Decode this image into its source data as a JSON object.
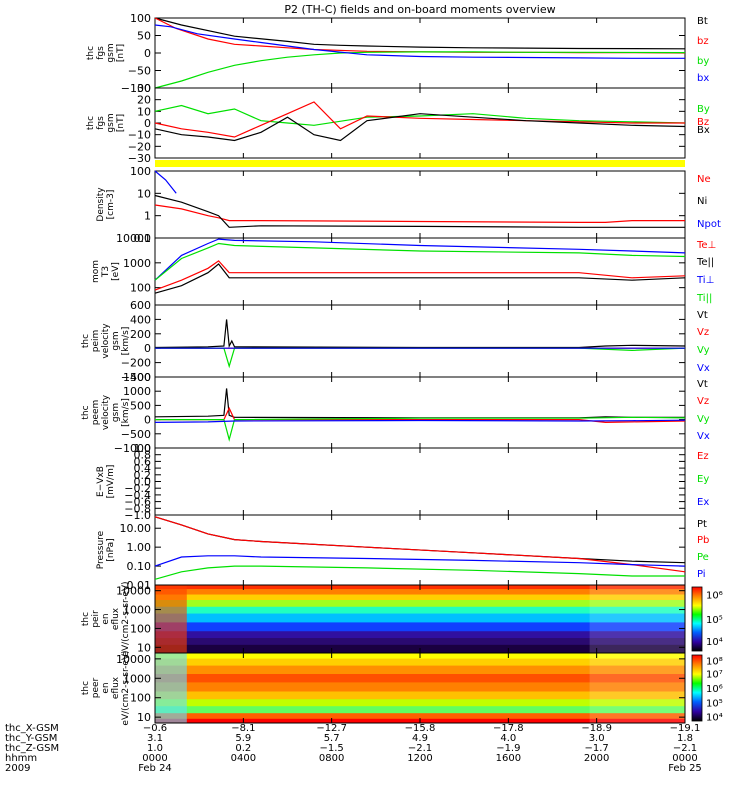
{
  "figure": {
    "title": "P2 (TH-C) fields and on-board moments overview",
    "colors": {
      "black": "#000000",
      "red": "#ff0000",
      "green": "#00e000",
      "blue": "#0000ff",
      "yellow": "#ffff00"
    }
  },
  "chart_data": [
    {
      "type": "line",
      "name": "fgs-gsm",
      "ylabel": "thc fgs gsm [nT]",
      "ylim": [
        -100,
        100
      ],
      "ticks": [
        "100",
        "50",
        "0",
        "−50",
        "−100"
      ],
      "tick_values": [
        100,
        50,
        0,
        -50,
        -100
      ],
      "series": [
        {
          "name": "Bt",
          "color": "#000000",
          "x": [
            0.0,
            0.05,
            0.15,
            0.25,
            0.3,
            0.35,
            0.4,
            0.5,
            0.6,
            0.7,
            0.8,
            1.0
          ],
          "y": [
            100,
            80,
            48,
            33,
            25,
            22,
            20,
            17,
            15,
            14,
            13,
            12
          ]
        },
        {
          "name": "bz",
          "color": "#ff0000",
          "x": [
            0.0,
            0.04,
            0.1,
            0.15,
            0.2,
            0.25,
            0.3,
            0.4,
            0.5,
            0.6,
            0.7,
            0.8,
            0.9,
            1.0
          ],
          "y": [
            100,
            70,
            40,
            25,
            20,
            15,
            10,
            5,
            3,
            2,
            2,
            1,
            1,
            0
          ]
        },
        {
          "name": "by",
          "color": "#00e000",
          "x": [
            0.0,
            0.05,
            0.1,
            0.15,
            0.2,
            0.25,
            0.3,
            0.35,
            0.4,
            0.5,
            0.6,
            0.7,
            0.8,
            1.0
          ],
          "y": [
            -100,
            -80,
            -55,
            -35,
            -22,
            -12,
            -5,
            0,
            2,
            3,
            3,
            2,
            2,
            1
          ]
        },
        {
          "name": "bx",
          "color": "#0000ff",
          "x": [
            0.0,
            0.03,
            0.08,
            0.15,
            0.2,
            0.3,
            0.4,
            0.5,
            0.6,
            0.7,
            0.8,
            0.9,
            1.0
          ],
          "y": [
            80,
            75,
            55,
            40,
            30,
            10,
            -5,
            -10,
            -12,
            -13,
            -14,
            -15,
            -15
          ]
        }
      ]
    },
    {
      "type": "line",
      "name": "fgs-gsm-detrended",
      "ylabel": "thc fgs gsm [nT]",
      "ylim": [
        -30,
        30
      ],
      "ticks": [
        "30",
        "20",
        "10",
        "0",
        "−10",
        "−20",
        "−30"
      ],
      "tick_values": [
        30,
        20,
        10,
        0,
        -10,
        -20,
        -30
      ],
      "series": [
        {
          "name": "By",
          "color": "#00e000",
          "x": [
            0.0,
            0.05,
            0.1,
            0.15,
            0.2,
            0.25,
            0.3,
            0.4,
            0.5,
            0.6,
            0.7,
            0.8,
            0.9,
            1.0
          ],
          "y": [
            10,
            15,
            8,
            12,
            2,
            0,
            -2,
            5,
            6,
            8,
            4,
            2,
            1,
            0
          ]
        },
        {
          "name": "Bz",
          "color": "#ff0000",
          "x": [
            0.0,
            0.05,
            0.1,
            0.15,
            0.2,
            0.25,
            0.3,
            0.35,
            0.4,
            0.5,
            0.6,
            0.7,
            0.8,
            0.9,
            1.0
          ],
          "y": [
            0,
            -5,
            -8,
            -12,
            -2,
            8,
            18,
            -5,
            6,
            4,
            3,
            2,
            1,
            0,
            0
          ]
        },
        {
          "name": "Bx",
          "color": "#000000",
          "x": [
            0.0,
            0.05,
            0.1,
            0.15,
            0.2,
            0.25,
            0.3,
            0.35,
            0.4,
            0.5,
            0.6,
            0.7,
            0.8,
            0.9,
            1.0
          ],
          "y": [
            -5,
            -10,
            -12,
            -15,
            -8,
            5,
            -10,
            -15,
            2,
            8,
            5,
            2,
            0,
            -2,
            -3
          ]
        }
      ]
    },
    {
      "type": "line",
      "name": "density",
      "ylabel": "Density [cm-3]",
      "scale": "log",
      "ylim": [
        0.1,
        100
      ],
      "ticks": [
        "100",
        "10",
        "1",
        "0.1"
      ],
      "tick_values": [
        100,
        10,
        1,
        0.1
      ],
      "series": [
        {
          "name": "Ne",
          "color": "#ff0000",
          "x": [
            0.0,
            0.05,
            0.1,
            0.12,
            0.14,
            0.2,
            0.5,
            0.8,
            0.85,
            0.9,
            1.0
          ],
          "y": [
            3,
            2,
            1,
            0.8,
            0.6,
            0.6,
            0.55,
            0.5,
            0.5,
            0.6,
            0.6
          ]
        },
        {
          "name": "Ni",
          "color": "#000000",
          "x": [
            0.0,
            0.05,
            0.1,
            0.12,
            0.14,
            0.2,
            0.5,
            0.8,
            0.85,
            1.0
          ],
          "y": [
            8,
            4,
            1.5,
            1,
            0.3,
            0.35,
            0.33,
            0.3,
            0.3,
            0.3
          ]
        },
        {
          "name": "Npot",
          "color": "#0000ff",
          "x": [
            0.0,
            0.02,
            0.04
          ],
          "y": [
            100,
            40,
            10
          ]
        }
      ]
    },
    {
      "type": "line",
      "name": "temperature",
      "ylabel": "mom T3 [eV]",
      "scale": "log",
      "ylim": [
        20,
        10000
      ],
      "ticks": [
        "10000",
        "1000",
        "100"
      ],
      "tick_values": [
        10000,
        1000,
        100
      ],
      "series": [
        {
          "name": "Te⊥",
          "color": "#ff0000",
          "x": [
            0.0,
            0.05,
            0.1,
            0.12,
            0.14,
            0.2,
            0.5,
            0.8,
            0.9,
            1.0
          ],
          "y": [
            80,
            200,
            600,
            1200,
            400,
            400,
            400,
            400,
            250,
            300
          ]
        },
        {
          "name": "Te||",
          "color": "#000000",
          "x": [
            0.0,
            0.05,
            0.1,
            0.12,
            0.14,
            0.2,
            0.5,
            0.8,
            0.9,
            1.0
          ],
          "y": [
            60,
            120,
            400,
            900,
            250,
            250,
            250,
            250,
            200,
            250
          ]
        },
        {
          "name": "Ti⊥",
          "color": "#0000ff",
          "x": [
            0.0,
            0.05,
            0.1,
            0.12,
            0.15,
            0.3,
            0.5,
            0.8,
            0.9,
            1.0
          ],
          "y": [
            200,
            2000,
            6000,
            9000,
            8000,
            7000,
            5000,
            3500,
            3000,
            2500
          ]
        },
        {
          "name": "Ti||",
          "color": "#00e000",
          "x": [
            0.0,
            0.05,
            0.1,
            0.12,
            0.15,
            0.3,
            0.5,
            0.8,
            0.9,
            1.0
          ],
          "y": [
            200,
            1500,
            4000,
            6000,
            5000,
            4000,
            3000,
            2500,
            2000,
            1800
          ]
        }
      ]
    },
    {
      "type": "line",
      "name": "peim-velocity",
      "ylabel": "thc peim velocity gsm [km/s]",
      "ylim": [
        -400,
        600
      ],
      "ticks": [
        "600",
        "400",
        "200",
        "0",
        "−200",
        "−400"
      ],
      "tick_values": [
        600,
        400,
        200,
        0,
        -200,
        -400
      ],
      "series": [
        {
          "name": "Vt",
          "color": "#000000",
          "x": [
            0.0,
            0.1,
            0.13,
            0.135,
            0.14,
            0.145,
            0.15,
            0.5,
            0.8,
            0.85,
            0.9,
            1.0
          ],
          "y": [
            10,
            20,
            30,
            400,
            30,
            100,
            20,
            10,
            10,
            30,
            40,
            30
          ]
        },
        {
          "name": "Vz",
          "color": "#ff0000",
          "x": [
            0.0,
            0.5,
            1.0
          ],
          "y": [
            0,
            0,
            0
          ]
        },
        {
          "name": "Vy",
          "color": "#00e000",
          "x": [
            0.0,
            0.13,
            0.14,
            0.15,
            0.5,
            0.8,
            0.9,
            1.0
          ],
          "y": [
            0,
            0,
            -250,
            0,
            0,
            0,
            -30,
            0
          ]
        },
        {
          "name": "Vx",
          "color": "#0000ff",
          "x": [
            0.0,
            0.3,
            0.5,
            0.8,
            1.0
          ],
          "y": [
            0,
            0,
            0,
            0,
            0
          ]
        }
      ]
    },
    {
      "type": "line",
      "name": "peem-velocity",
      "ylabel": "thc peem velocity gsm [km/s]",
      "ylim": [
        -1000,
        1500
      ],
      "ticks": [
        "1500",
        "1000",
        "500",
        "0",
        "−500",
        "−1000"
      ],
      "tick_values": [
        1500,
        1000,
        500,
        0,
        -500,
        -1000
      ],
      "series": [
        {
          "name": "Vt",
          "color": "#000000",
          "x": [
            0.0,
            0.1,
            0.13,
            0.135,
            0.14,
            0.15,
            0.5,
            0.8,
            0.85,
            0.9,
            1.0
          ],
          "y": [
            100,
            120,
            150,
            1100,
            150,
            80,
            60,
            60,
            100,
            80,
            80
          ]
        },
        {
          "name": "Vz",
          "color": "#ff0000",
          "x": [
            0.0,
            0.13,
            0.14,
            0.15,
            0.5,
            0.8,
            0.85,
            0.9,
            1.0
          ],
          "y": [
            0,
            0,
            400,
            0,
            0,
            0,
            -100,
            -80,
            -50
          ]
        },
        {
          "name": "Vy",
          "color": "#00e000",
          "x": [
            0.0,
            0.13,
            0.14,
            0.15,
            0.5,
            0.8,
            0.9,
            1.0
          ],
          "y": [
            0,
            0,
            -700,
            0,
            50,
            50,
            80,
            60
          ]
        },
        {
          "name": "Vx",
          "color": "#0000ff",
          "x": [
            0.0,
            0.1,
            0.15,
            0.5,
            0.8,
            0.9,
            1.0
          ],
          "y": [
            -100,
            -80,
            -50,
            -30,
            -50,
            -40,
            -20
          ]
        }
      ]
    },
    {
      "type": "line",
      "name": "e-vxb",
      "ylabel": "E−VxB [mV/m]",
      "ylim": [
        -1,
        1
      ],
      "ticks": [
        "1.0",
        "0.8",
        "0.6",
        "0.4",
        "0.2",
        "0.0",
        "−0.2",
        "−0.4",
        "−0.6",
        "−0.8",
        "−1.0"
      ],
      "tick_values": [
        1.0,
        0.8,
        0.6,
        0.4,
        0.2,
        0.0,
        -0.2,
        -0.4,
        -0.6,
        -0.8,
        -1.0
      ],
      "series": [
        {
          "name": "Ez",
          "color": "#ff0000",
          "x": [],
          "y": []
        },
        {
          "name": "Ey",
          "color": "#00e000",
          "x": [],
          "y": []
        },
        {
          "name": "Ex",
          "color": "#0000ff",
          "x": [],
          "y": []
        }
      ]
    },
    {
      "type": "line",
      "name": "pressure",
      "ylabel": "Pressure [nPa]",
      "scale": "log",
      "ylim": [
        0.01,
        50
      ],
      "ticks": [
        "10.00",
        "1.00",
        "0.10",
        "0.01"
      ],
      "tick_values": [
        10,
        1,
        0.1,
        0.01
      ],
      "series": [
        {
          "name": "Pt",
          "color": "#000000",
          "x": [
            0.0,
            0.05,
            0.1,
            0.15,
            0.2,
            0.4,
            0.6,
            0.8,
            0.9,
            1.0
          ],
          "y": [
            40,
            15,
            5,
            2.5,
            2,
            1,
            0.5,
            0.25,
            0.18,
            0.15
          ]
        },
        {
          "name": "Pb",
          "color": "#ff0000",
          "x": [
            0.0,
            0.05,
            0.1,
            0.15,
            0.2,
            0.4,
            0.6,
            0.8,
            0.9,
            1.0
          ],
          "y": [
            40,
            15,
            5,
            2.5,
            2,
            1,
            0.5,
            0.25,
            0.12,
            0.05
          ]
        },
        {
          "name": "Pe",
          "color": "#00e000",
          "x": [
            0.0,
            0.05,
            0.1,
            0.15,
            0.2,
            0.4,
            0.6,
            0.8,
            0.9,
            1.0
          ],
          "y": [
            0.02,
            0.05,
            0.08,
            0.1,
            0.1,
            0.08,
            0.06,
            0.04,
            0.03,
            0.03
          ]
        },
        {
          "name": "Pi",
          "color": "#0000ff",
          "x": [
            0.0,
            0.05,
            0.1,
            0.15,
            0.2,
            0.4,
            0.6,
            0.8,
            0.9,
            1.0
          ],
          "y": [
            0.1,
            0.3,
            0.35,
            0.35,
            0.3,
            0.25,
            0.2,
            0.15,
            0.12,
            0.1
          ]
        }
      ]
    },
    {
      "type": "heatmap",
      "name": "peir-en-eflux",
      "ylabel": "thc peir en eflux eV/(cm2-s-sr-eV)",
      "scale": "log",
      "ylim": [
        5,
        20000
      ],
      "ticks": [
        "10000",
        "1000",
        "100",
        "10"
      ],
      "tick_values": [
        10000,
        1000,
        100,
        10
      ],
      "colorbar_ticks": [
        "10⁶",
        "10⁵",
        "10⁴"
      ],
      "colorbar_tick_positions": [
        0.12,
        0.5,
        0.84
      ]
    },
    {
      "type": "heatmap",
      "name": "peer-en-eflux",
      "ylabel": "thc peer en eflux eV/(cm2-s-sr-eV)",
      "scale": "log",
      "ylim": [
        5,
        20000
      ],
      "ticks": [
        "10000",
        "1000",
        "100",
        "10"
      ],
      "tick_values": [
        10000,
        1000,
        100,
        10
      ],
      "colorbar_ticks": [
        "10⁸",
        "10⁷",
        "10⁶",
        "10⁵",
        "10⁴"
      ],
      "colorbar_tick_positions": [
        0.08,
        0.28,
        0.5,
        0.72,
        0.93
      ]
    }
  ],
  "xaxis": {
    "labels": [
      "thc_X-GSM",
      "thc_Y-GSM",
      "thc_Z-GSM",
      "hhmm",
      "2009"
    ],
    "ticks": [
      {
        "frac": 0.0,
        "vals": [
          "−0.6",
          "3.1",
          "1.0",
          "0000",
          "Feb 24"
        ]
      },
      {
        "frac": 0.1667,
        "vals": [
          "−8.1",
          "5.9",
          "0.2",
          "0400",
          ""
        ]
      },
      {
        "frac": 0.3333,
        "vals": [
          "−12.7",
          "5.7",
          "−1.5",
          "0800",
          ""
        ]
      },
      {
        "frac": 0.5,
        "vals": [
          "−15.8",
          "4.9",
          "−2.1",
          "1200",
          ""
        ]
      },
      {
        "frac": 0.6667,
        "vals": [
          "−17.8",
          "4.0",
          "−1.9",
          "1600",
          ""
        ]
      },
      {
        "frac": 0.8333,
        "vals": [
          "−18.9",
          "3.0",
          "−1.7",
          "2000",
          ""
        ]
      },
      {
        "frac": 1.0,
        "vals": [
          "−19.1",
          "1.8",
          "−2.1",
          "0000",
          "Feb 25"
        ]
      }
    ]
  }
}
